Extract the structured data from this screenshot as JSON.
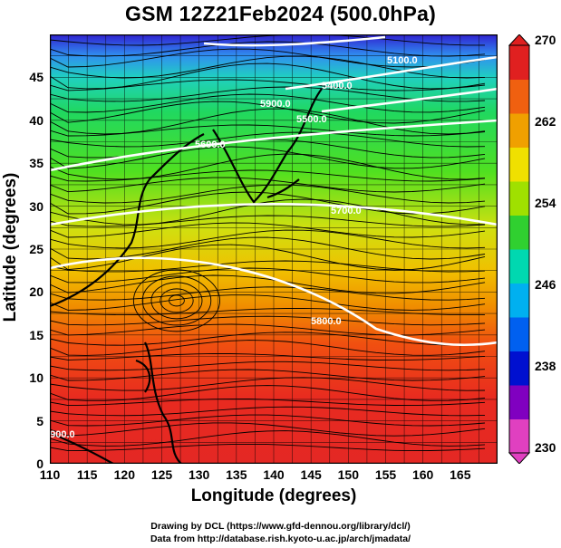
{
  "title": "GSM 12Z21Feb2024 (500.0hPa)",
  "xlabel": "Longitude (degrees)",
  "ylabel": "Latitude  (degrees)",
  "xticks": [
    "110",
    "115",
    "120",
    "125",
    "130",
    "135",
    "140",
    "145",
    "150",
    "155",
    "160",
    "165"
  ],
  "yticks": [
    "0",
    "5",
    "10",
    "15",
    "20",
    "25",
    "30",
    "35",
    "40",
    "45"
  ],
  "colorbar": {
    "ticks": [
      "230",
      "238",
      "246",
      "254",
      "262",
      "270"
    ],
    "colors": [
      "#e040c0",
      "#8000c0",
      "#0010d0",
      "#0060f0",
      "#00b0f0",
      "#00d8b0",
      "#30d030",
      "#a0e000",
      "#f0e000",
      "#f0a000",
      "#f06010",
      "#e02020"
    ]
  },
  "contour_labels": [
    "5100.0",
    "5400.0",
    "5500.0",
    "5600.0",
    "5700.0",
    "5800.0",
    "5900.0",
    "5900.0"
  ],
  "credits": {
    "line1": "Drawing by DCL (https://www.gfd-dennou.org/library/dcl/)",
    "line2": "Data from http://database.rish.kyoto-u.ac.jp/arch/jmadata/"
  },
  "chart_data": {
    "type": "heatmap",
    "title": "GSM 12Z21Feb2024 (500.0hPa)",
    "xlabel": "Longitude (degrees)",
    "ylabel": "Latitude  (degrees)",
    "xlim": [
      110,
      170
    ],
    "ylim": [
      0,
      50
    ],
    "colorbar_range": [
      230,
      270
    ],
    "colorbar_ticks": [
      230,
      238,
      246,
      254,
      262,
      270
    ],
    "contour_levels": [
      5100,
      5400,
      5500,
      5600,
      5700,
      5800,
      5900
    ],
    "overlays": [
      "streamlines",
      "coastlines",
      "grid"
    ],
    "grid": true
  }
}
